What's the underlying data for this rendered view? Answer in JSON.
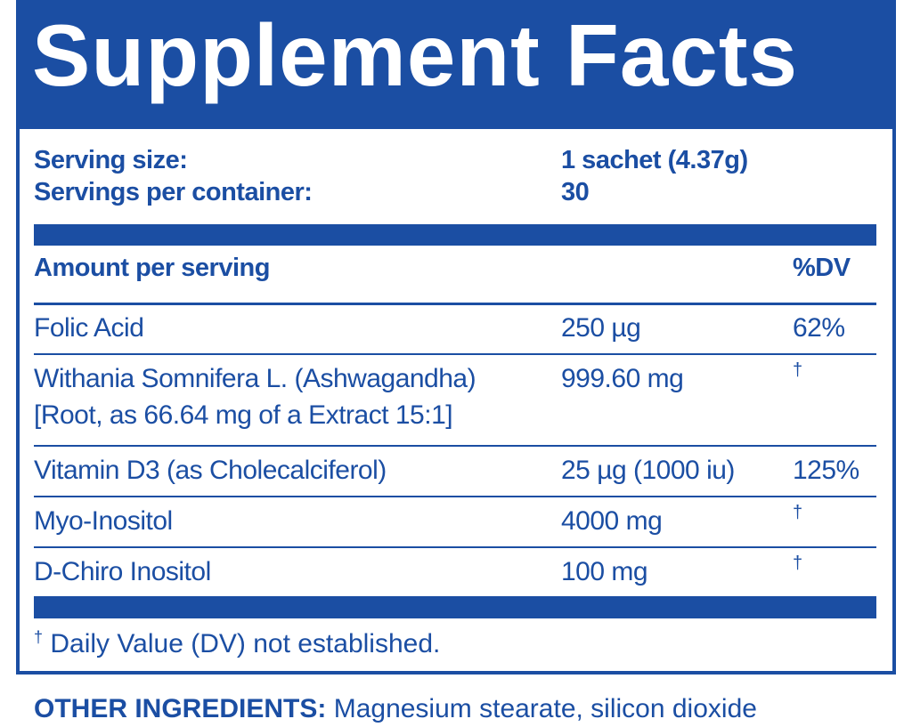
{
  "header": {
    "title": "Supplement Facts"
  },
  "serving": {
    "rows": [
      [
        "Serving size:",
        "1 sachet (4.37g)"
      ],
      [
        "Servings per container:",
        "30"
      ]
    ]
  },
  "table": {
    "header": [
      "Amount per serving",
      "%DV"
    ],
    "rows": [
      {
        "name": "Folic Acid",
        "amount": "250 µg",
        "dv": "62%"
      },
      {
        "name": "Withania Somnifera L. (Ashwagandha)",
        "detail": "[Root, as 66.64 mg of a Extract 15:1]",
        "amount": "999.60 mg",
        "dv": "†"
      },
      {
        "name": "Vitamin D3 (as Cholecalciferol)",
        "amount": "25 µg (1000 iu)",
        "dv": "125%"
      },
      {
        "name": "Myo-Inositol",
        "amount": "4000 mg",
        "dv": "†"
      },
      {
        "name": "D-Chiro Inositol",
        "amount": "100 mg",
        "dv": "†"
      }
    ]
  },
  "footnote": {
    "symbol": "†",
    "text": "Daily Value (DV) not established."
  },
  "other_ingredients": {
    "label": "OTHER INGREDIENTS:",
    "text": "Magnesium stearate, silicon dioxide"
  }
}
